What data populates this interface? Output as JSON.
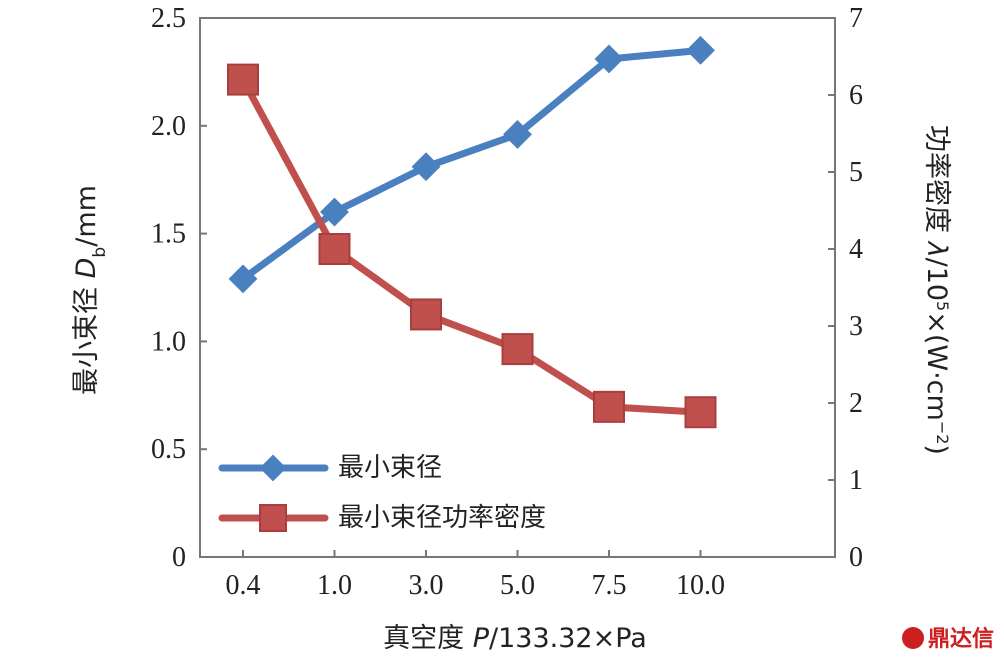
{
  "chart_data": {
    "type": "line",
    "categories": [
      "0.4",
      "1.0",
      "3.0",
      "5.0",
      "7.5",
      "10.0"
    ],
    "series": [
      {
        "name": "最小束径",
        "axis": "left",
        "color": "#4a7fc0",
        "marker": "diamond",
        "values": [
          1.29,
          1.6,
          1.81,
          1.96,
          2.31,
          2.35
        ]
      },
      {
        "name": "最小束径功率密度",
        "axis": "right",
        "color": "#c0504d",
        "marker": "square",
        "values": [
          6.2,
          4.0,
          3.15,
          2.7,
          1.95,
          1.88
        ]
      }
    ],
    "xlabel": {
      "prefix": "真空度 ",
      "var": "P",
      "suffix": "/133.32×Pa"
    },
    "ylabel_left": {
      "prefix": "最小束径 ",
      "var": "D",
      "sub": "b",
      "suffix": "/mm"
    },
    "ylabel_right": {
      "prefix": "功率密度 ",
      "var": "λ",
      "mid": "/10",
      "sup": "5",
      "suffix": "×(W·cm",
      "sup2": "−2",
      "end": ")"
    },
    "yleft": {
      "lim": [
        0,
        2.5
      ],
      "ticks": [
        "0",
        "0.5",
        "1.0",
        "1.5",
        "2.0",
        "2.5"
      ]
    },
    "yright": {
      "lim": [
        0,
        7
      ],
      "ticks": [
        "0",
        "1",
        "2",
        "3",
        "4",
        "5",
        "6",
        "7"
      ]
    },
    "grid": false,
    "legend_position": "lower-left"
  },
  "watermark": {
    "text": "鼎达信"
  }
}
